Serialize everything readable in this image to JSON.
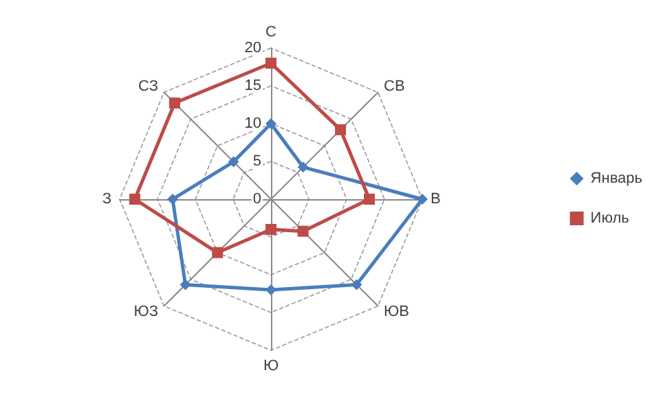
{
  "chart_data": {
    "type": "radar",
    "categories": [
      "С",
      "СВ",
      "В",
      "ЮВ",
      "Ю",
      "ЮЗ",
      "З",
      "СЗ"
    ],
    "series": [
      {
        "name": "Январь",
        "color": "#4a7ebb",
        "marker": "diamond",
        "values": [
          10,
          6,
          20,
          16,
          12,
          16,
          13,
          7
        ]
      },
      {
        "name": "Июль",
        "color": "#be4b48",
        "marker": "square",
        "values": [
          18,
          13,
          13,
          6,
          4,
          10,
          18,
          18
        ]
      }
    ],
    "ylim": [
      0,
      20
    ],
    "yticks": [
      0,
      5,
      10,
      15,
      20
    ],
    "grid": true,
    "legend": "right"
  }
}
